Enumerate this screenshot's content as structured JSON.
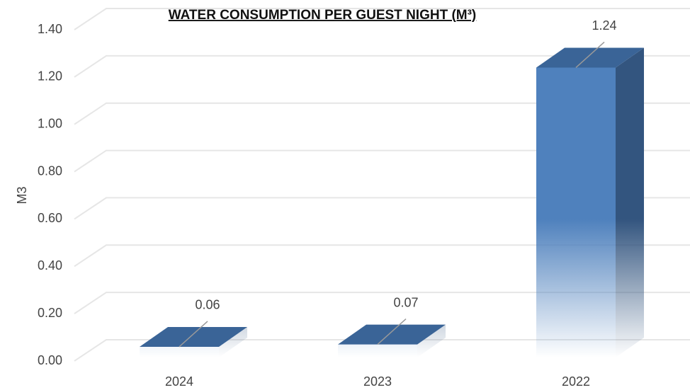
{
  "chart_data": {
    "type": "bar3d",
    "title": "WATER CONSUMPTION PER GUEST NIGHT (M³)",
    "y_label": "M3",
    "categories": [
      "2024",
      "2023",
      "2022"
    ],
    "values": [
      0.06,
      0.07,
      1.24
    ],
    "color": "#4f81bd",
    "ylim": [
      0,
      1.4
    ],
    "yticks": [
      {
        "value": 0,
        "label": "0.00"
      },
      {
        "value": 0.2,
        "label": "0.20"
      },
      {
        "value": 0.4,
        "label": "0.40"
      },
      {
        "value": 0.6,
        "label": "0.60"
      },
      {
        "value": 0.8,
        "label": "0.80"
      },
      {
        "value": 1,
        "label": "1.00"
      },
      {
        "value": 1.2,
        "label": "1.20"
      },
      {
        "value": 1.4,
        "label": "1.40"
      }
    ],
    "grid": true
  }
}
